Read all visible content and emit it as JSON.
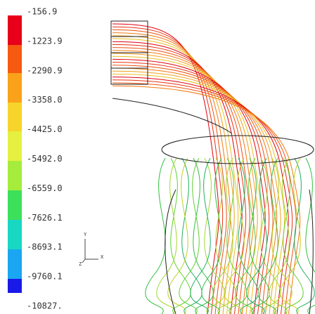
{
  "legend": {
    "labels": [
      "-156.9",
      "-1223.9",
      "-2290.9",
      "-3358.0",
      "-4425.0",
      "-5492.0",
      "-6559.0",
      "-7626.1",
      "-8693.1",
      "-9760.1",
      "-10827."
    ]
  },
  "triad": {
    "y": "Y",
    "x": "X",
    "z": "Z"
  }
}
